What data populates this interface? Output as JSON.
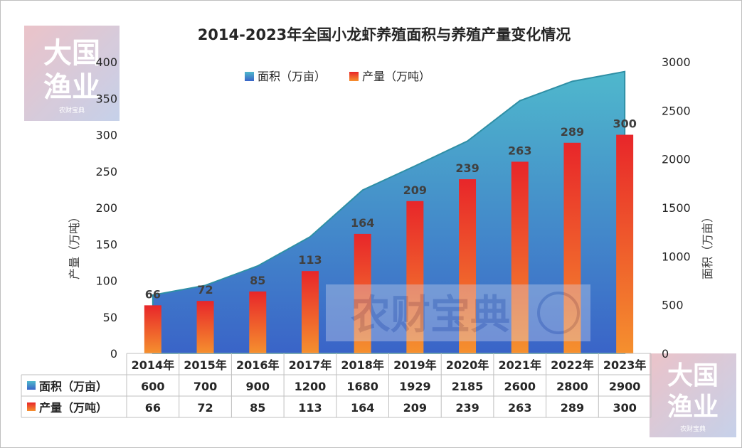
{
  "chart_data": {
    "type": "bar",
    "title": "2014-2023年全国小龙虾养殖面积与养殖产量变化情况",
    "categories": [
      "2014年",
      "2015年",
      "2016年",
      "2017年",
      "2018年",
      "2019年",
      "2020年",
      "2021年",
      "2022年",
      "2023年"
    ],
    "series": [
      {
        "name": "面积（万亩）",
        "type": "area",
        "axis": "right",
        "values": [
          600,
          700,
          900,
          1200,
          1680,
          1929,
          2185,
          2600,
          2800,
          2900
        ],
        "color_top": "#4fb8cc",
        "color_bottom": "#3a64c8"
      },
      {
        "name": "产量（万吨）",
        "type": "bar",
        "axis": "left",
        "values": [
          66,
          72,
          85,
          113,
          164,
          209,
          239,
          263,
          289,
          300
        ],
        "color_top": "#e8262a",
        "color_bottom": "#f5902e"
      }
    ],
    "ylabel_left": "产量（万吨）",
    "ylabel_right": "面积（万亩）",
    "ylim_left": [
      0,
      400
    ],
    "ylim_right": [
      0,
      3000
    ],
    "yticks_left": [
      "0",
      "50",
      "100",
      "150",
      "200",
      "250",
      "300",
      "350",
      "400"
    ],
    "yticks_right": [
      "0",
      "500",
      "1000",
      "1500",
      "2000",
      "2500",
      "3000"
    ],
    "legend_position": "top-center",
    "data_table": true
  },
  "watermarks": {
    "logo_line1": "大国",
    "logo_line2": "渔业",
    "logo_sub": "农财宝典",
    "center": "农财宝典"
  }
}
